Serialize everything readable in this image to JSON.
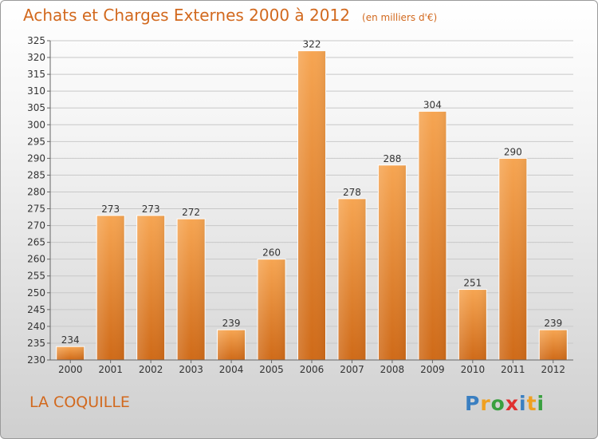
{
  "title": "Achats et Charges Externes 2000 à 2012",
  "subtitle": "(en milliers d'€)",
  "commune": "LA COQUILLE",
  "logo": {
    "letters": [
      "P",
      "r",
      "o",
      "x",
      "i",
      "t",
      "i"
    ],
    "colors": [
      "#3a7fc1",
      "#f0a020",
      "#3aa040",
      "#e03030",
      "#3a7fc1",
      "#f0a020",
      "#3aa040"
    ]
  },
  "colors": {
    "bar": "#f0902a",
    "title": "#d2691e"
  },
  "chart_data": {
    "type": "bar",
    "title": "Achats et Charges Externes 2000 à 2012",
    "categories": [
      "2000",
      "2001",
      "2002",
      "2003",
      "2004",
      "2005",
      "2006",
      "2007",
      "2008",
      "2009",
      "2010",
      "2011",
      "2012"
    ],
    "values": [
      234,
      273,
      273,
      272,
      239,
      260,
      322,
      278,
      288,
      304,
      251,
      290,
      239
    ],
    "ylim": [
      230,
      325
    ],
    "ytick_step": 5,
    "grid": true,
    "xlabel": "",
    "ylabel": ""
  }
}
